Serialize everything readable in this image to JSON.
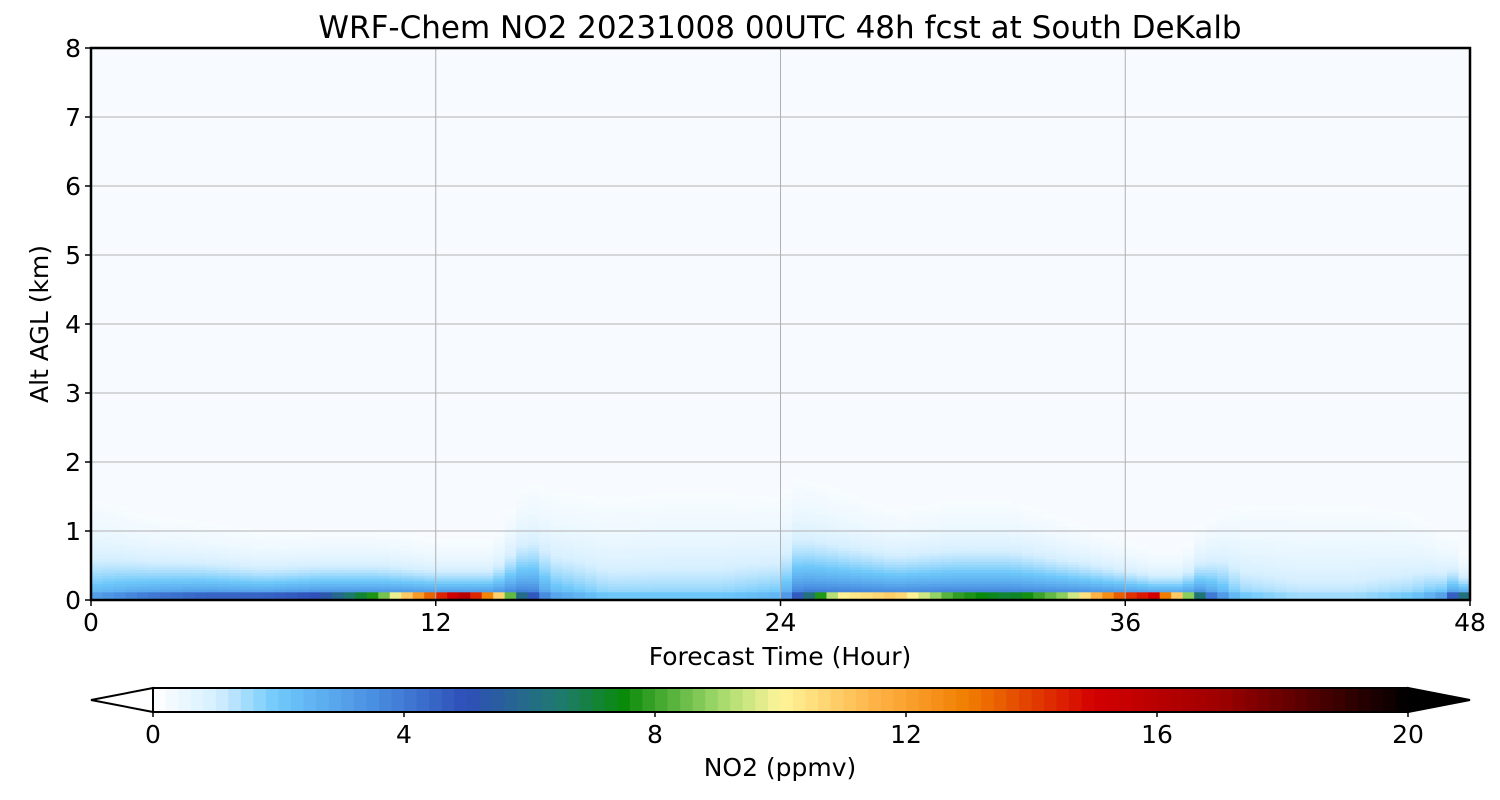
{
  "chart_data": {
    "type": "heatmap",
    "title": "WRF-Chem NO2  20231008 00UTC 48h fcst at South DeKalb",
    "xlabel": "Forecast Time (Hour)",
    "ylabel": "Alt AGL (km)",
    "xlim": [
      0,
      48
    ],
    "ylim": [
      0,
      8
    ],
    "x_ticks": [
      "0",
      "12",
      "24",
      "36",
      "48"
    ],
    "y_ticks": [
      "0",
      "1",
      "2",
      "3",
      "4",
      "5",
      "6",
      "7",
      "8"
    ],
    "grid": true,
    "colorbar": {
      "label": "NO2  (ppmv)",
      "min": 0,
      "max": 20,
      "ticks": [
        "0",
        "4",
        "8",
        "12",
        "16",
        "20"
      ],
      "extend": "both",
      "stops": [
        {
          "v": 0,
          "c": "#ffffff"
        },
        {
          "v": 1,
          "c": "#d6efff"
        },
        {
          "v": 2,
          "c": "#6ec8fa"
        },
        {
          "v": 3.5,
          "c": "#4a90e2"
        },
        {
          "v": 5,
          "c": "#2e4fb8"
        },
        {
          "v": 6.5,
          "c": "#1f7a6e"
        },
        {
          "v": 7.5,
          "c": "#0a8a0a"
        },
        {
          "v": 9,
          "c": "#9fd86a"
        },
        {
          "v": 10,
          "c": "#fff59a"
        },
        {
          "v": 11.5,
          "c": "#ffb347"
        },
        {
          "v": 13,
          "c": "#f07d00"
        },
        {
          "v": 15,
          "c": "#d40000"
        },
        {
          "v": 17,
          "c": "#9e0000"
        },
        {
          "v": 20,
          "c": "#000000"
        }
      ]
    },
    "x_hours": [
      0,
      2,
      4,
      6,
      8,
      10,
      12,
      13,
      14,
      15,
      16,
      18,
      20,
      22,
      24,
      26,
      28,
      30,
      32,
      34,
      36,
      37,
      38,
      39,
      40,
      42,
      44,
      46,
      47,
      48
    ],
    "surface_no2_ppmv": [
      3,
      4,
      4.5,
      4.5,
      5,
      8,
      14,
      16,
      12,
      6,
      3,
      2,
      2,
      2,
      2.5,
      10,
      11,
      8,
      7,
      9,
      14,
      15,
      10,
      4,
      2,
      1.5,
      1.5,
      2,
      3,
      7
    ],
    "mixing_height_km": [
      1.2,
      0.9,
      0.8,
      0.7,
      0.7,
      0.7,
      0.6,
      0.6,
      0.6,
      1.1,
      1.3,
      1.4,
      1.5,
      1.5,
      1.3,
      1.1,
      0.9,
      1.0,
      1.0,
      0.8,
      0.6,
      0.5,
      0.5,
      0.9,
      1.3,
      1.5,
      1.5,
      1.2,
      0.8,
      0.4
    ]
  }
}
